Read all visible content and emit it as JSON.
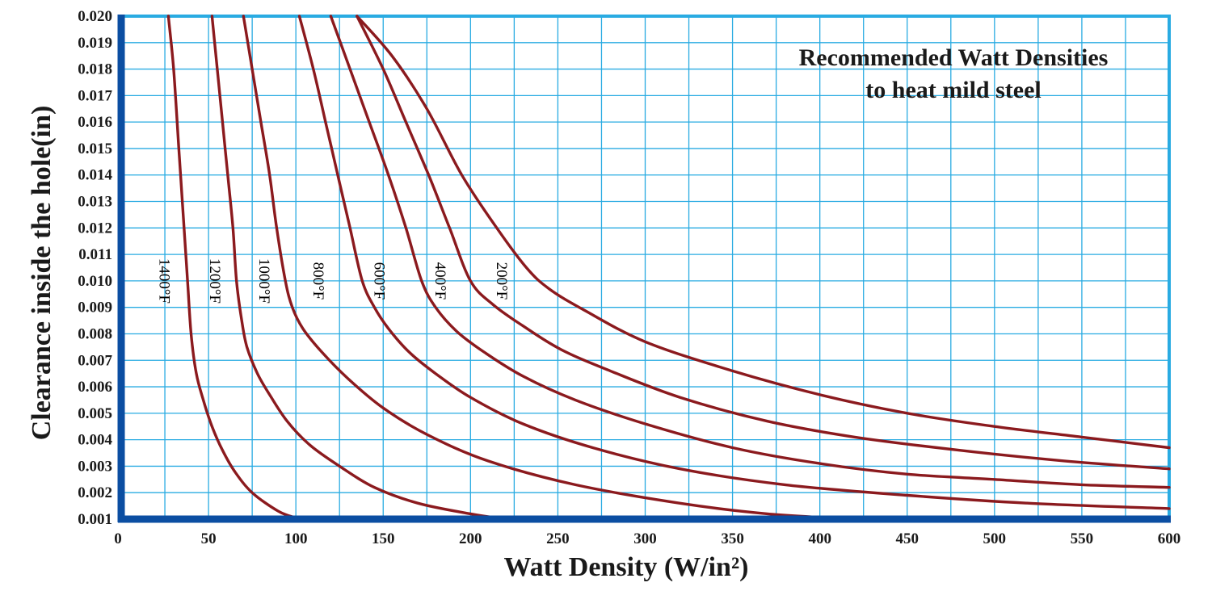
{
  "chart_data": {
    "type": "line",
    "title_lines": [
      "Recommended Watt Densities",
      "to heat mild steel"
    ],
    "xlabel": "Watt Density (W/in²)",
    "ylabel": "Clearance inside the hole(in)",
    "xlim": [
      0,
      600
    ],
    "ylim": [
      0.001,
      0.02
    ],
    "x_ticks": [
      "0",
      "50",
      "100",
      "150",
      "200",
      "250",
      "300",
      "350",
      "400",
      "450",
      "500",
      "550",
      "600"
    ],
    "y_ticks": [
      "0.020",
      "0.019",
      "0.018",
      "0.017",
      "0.016",
      "0.015",
      "0.014",
      "0.013",
      "0.012",
      "0.011",
      "0.010",
      "0.009",
      "0.008",
      "0.007",
      "0.006",
      "0.005",
      "0.004",
      "0.003",
      "0.002",
      "0.001"
    ],
    "grid": {
      "x_step": 25,
      "y_step": 0.001
    },
    "colors": {
      "curve": "#8b1a1e",
      "grid": "#29abe2",
      "frame": "#29abe2",
      "axis": "#0b4ea2"
    },
    "series": [
      {
        "name": "1400°F",
        "label_at": [
          22,
          0.01
        ],
        "points": [
          [
            27,
            0.02
          ],
          [
            30,
            0.018
          ],
          [
            33,
            0.015
          ],
          [
            36,
            0.012
          ],
          [
            38,
            0.01
          ],
          [
            40,
            0.008
          ],
          [
            43,
            0.0065
          ],
          [
            47,
            0.0055
          ],
          [
            52,
            0.0045
          ],
          [
            58,
            0.0036
          ],
          [
            65,
            0.0028
          ],
          [
            75,
            0.002
          ],
          [
            90,
            0.0013
          ],
          [
            100,
            0.00105
          ],
          [
            104,
            0.001
          ]
        ]
      },
      {
        "name": "1200°F",
        "label_at": [
          51,
          0.01
        ],
        "points": [
          [
            52,
            0.02
          ],
          [
            55,
            0.018
          ],
          [
            58,
            0.016
          ],
          [
            61,
            0.014
          ],
          [
            64,
            0.012
          ],
          [
            66,
            0.01
          ],
          [
            69,
            0.0085
          ],
          [
            72,
            0.0075
          ],
          [
            78,
            0.0065
          ],
          [
            85,
            0.0057
          ],
          [
            95,
            0.0047
          ],
          [
            108,
            0.0038
          ],
          [
            125,
            0.003
          ],
          [
            145,
            0.0022
          ],
          [
            170,
            0.0016
          ],
          [
            200,
            0.0012
          ],
          [
            220,
            0.001
          ]
        ]
      },
      {
        "name": "1000°F",
        "label_at": [
          79,
          0.01
        ],
        "points": [
          [
            70,
            0.02
          ],
          [
            75,
            0.018
          ],
          [
            80,
            0.016
          ],
          [
            85,
            0.014
          ],
          [
            89,
            0.012
          ],
          [
            94,
            0.01
          ],
          [
            98,
            0.009
          ],
          [
            104,
            0.0082
          ],
          [
            115,
            0.0073
          ],
          [
            130,
            0.0063
          ],
          [
            150,
            0.0052
          ],
          [
            175,
            0.0042
          ],
          [
            210,
            0.0032
          ],
          [
            260,
            0.0023
          ],
          [
            320,
            0.0016
          ],
          [
            370,
            0.0012
          ],
          [
            420,
            0.001
          ]
        ]
      },
      {
        "name": "800°F",
        "label_at": [
          110,
          0.01
        ],
        "points": [
          [
            102,
            0.02
          ],
          [
            110,
            0.018
          ],
          [
            117,
            0.016
          ],
          [
            124,
            0.014
          ],
          [
            131,
            0.012
          ],
          [
            138,
            0.01
          ],
          [
            145,
            0.009
          ],
          [
            153,
            0.0082
          ],
          [
            165,
            0.0073
          ],
          [
            180,
            0.0065
          ],
          [
            200,
            0.0056
          ],
          [
            230,
            0.0046
          ],
          [
            270,
            0.0037
          ],
          [
            320,
            0.0029
          ],
          [
            380,
            0.0023
          ],
          [
            450,
            0.0019
          ],
          [
            520,
            0.0016
          ],
          [
            600,
            0.0014
          ]
        ]
      },
      {
        "name": "600°F",
        "label_at": [
          145,
          0.01
        ],
        "points": [
          [
            120,
            0.02
          ],
          [
            131,
            0.018
          ],
          [
            142,
            0.016
          ],
          [
            153,
            0.014
          ],
          [
            163,
            0.012
          ],
          [
            172,
            0.01
          ],
          [
            180,
            0.009
          ],
          [
            192,
            0.0081
          ],
          [
            208,
            0.0073
          ],
          [
            230,
            0.0064
          ],
          [
            260,
            0.0055
          ],
          [
            300,
            0.0046
          ],
          [
            350,
            0.0037
          ],
          [
            400,
            0.0031
          ],
          [
            450,
            0.0027
          ],
          [
            500,
            0.0025
          ],
          [
            550,
            0.0023
          ],
          [
            600,
            0.0022
          ]
        ]
      },
      {
        "name": "400°F",
        "label_at": [
          180,
          0.01
        ],
        "points": [
          [
            135,
            0.02
          ],
          [
            150,
            0.018
          ],
          [
            163,
            0.016
          ],
          [
            176,
            0.014
          ],
          [
            188,
            0.012
          ],
          [
            200,
            0.01
          ],
          [
            213,
            0.0091
          ],
          [
            230,
            0.0083
          ],
          [
            252,
            0.0074
          ],
          [
            280,
            0.0066
          ],
          [
            320,
            0.0056
          ],
          [
            370,
            0.0047
          ],
          [
            420,
            0.0041
          ],
          [
            480,
            0.0036
          ],
          [
            540,
            0.0032
          ],
          [
            600,
            0.0029
          ]
        ]
      },
      {
        "name": "200°F",
        "label_at": [
          215,
          0.01
        ],
        "points": [
          [
            135,
            0.02
          ],
          [
            155,
            0.0185
          ],
          [
            175,
            0.0165
          ],
          [
            195,
            0.014
          ],
          [
            215,
            0.012
          ],
          [
            232,
            0.0105
          ],
          [
            245,
            0.0097
          ],
          [
            265,
            0.0089
          ],
          [
            300,
            0.0077
          ],
          [
            350,
            0.0066
          ],
          [
            400,
            0.0057
          ],
          [
            450,
            0.005
          ],
          [
            500,
            0.0045
          ],
          [
            550,
            0.0041
          ],
          [
            600,
            0.0037
          ]
        ]
      }
    ]
  }
}
